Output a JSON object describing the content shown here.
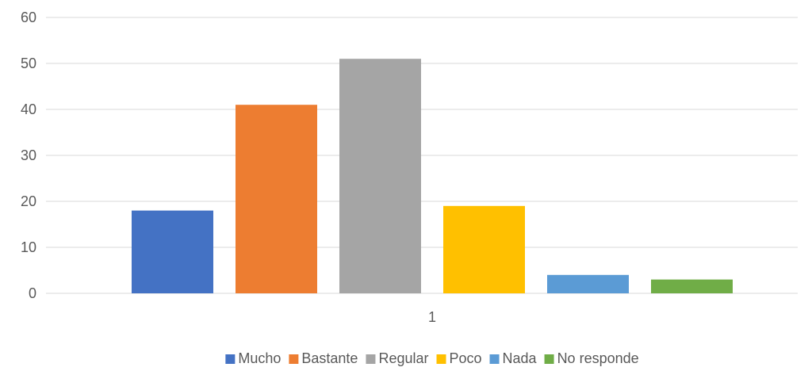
{
  "chart_data": {
    "type": "bar",
    "categories": [
      "1"
    ],
    "series": [
      {
        "name": "Mucho",
        "values": [
          18
        ],
        "color": "#4472C4"
      },
      {
        "name": "Bastante",
        "values": [
          41
        ],
        "color": "#ED7D31"
      },
      {
        "name": "Regular",
        "values": [
          51
        ],
        "color": "#A5A5A5"
      },
      {
        "name": "Poco",
        "values": [
          19
        ],
        "color": "#FFC000"
      },
      {
        "name": "Nada",
        "values": [
          4
        ],
        "color": "#5B9BD5"
      },
      {
        "name": "No responde",
        "values": [
          3
        ],
        "color": "#70AD47"
      }
    ],
    "ylim": [
      0,
      60
    ],
    "yticks": [
      0,
      10,
      20,
      30,
      40,
      50,
      60
    ],
    "grid": true,
    "legend": "bottom"
  }
}
